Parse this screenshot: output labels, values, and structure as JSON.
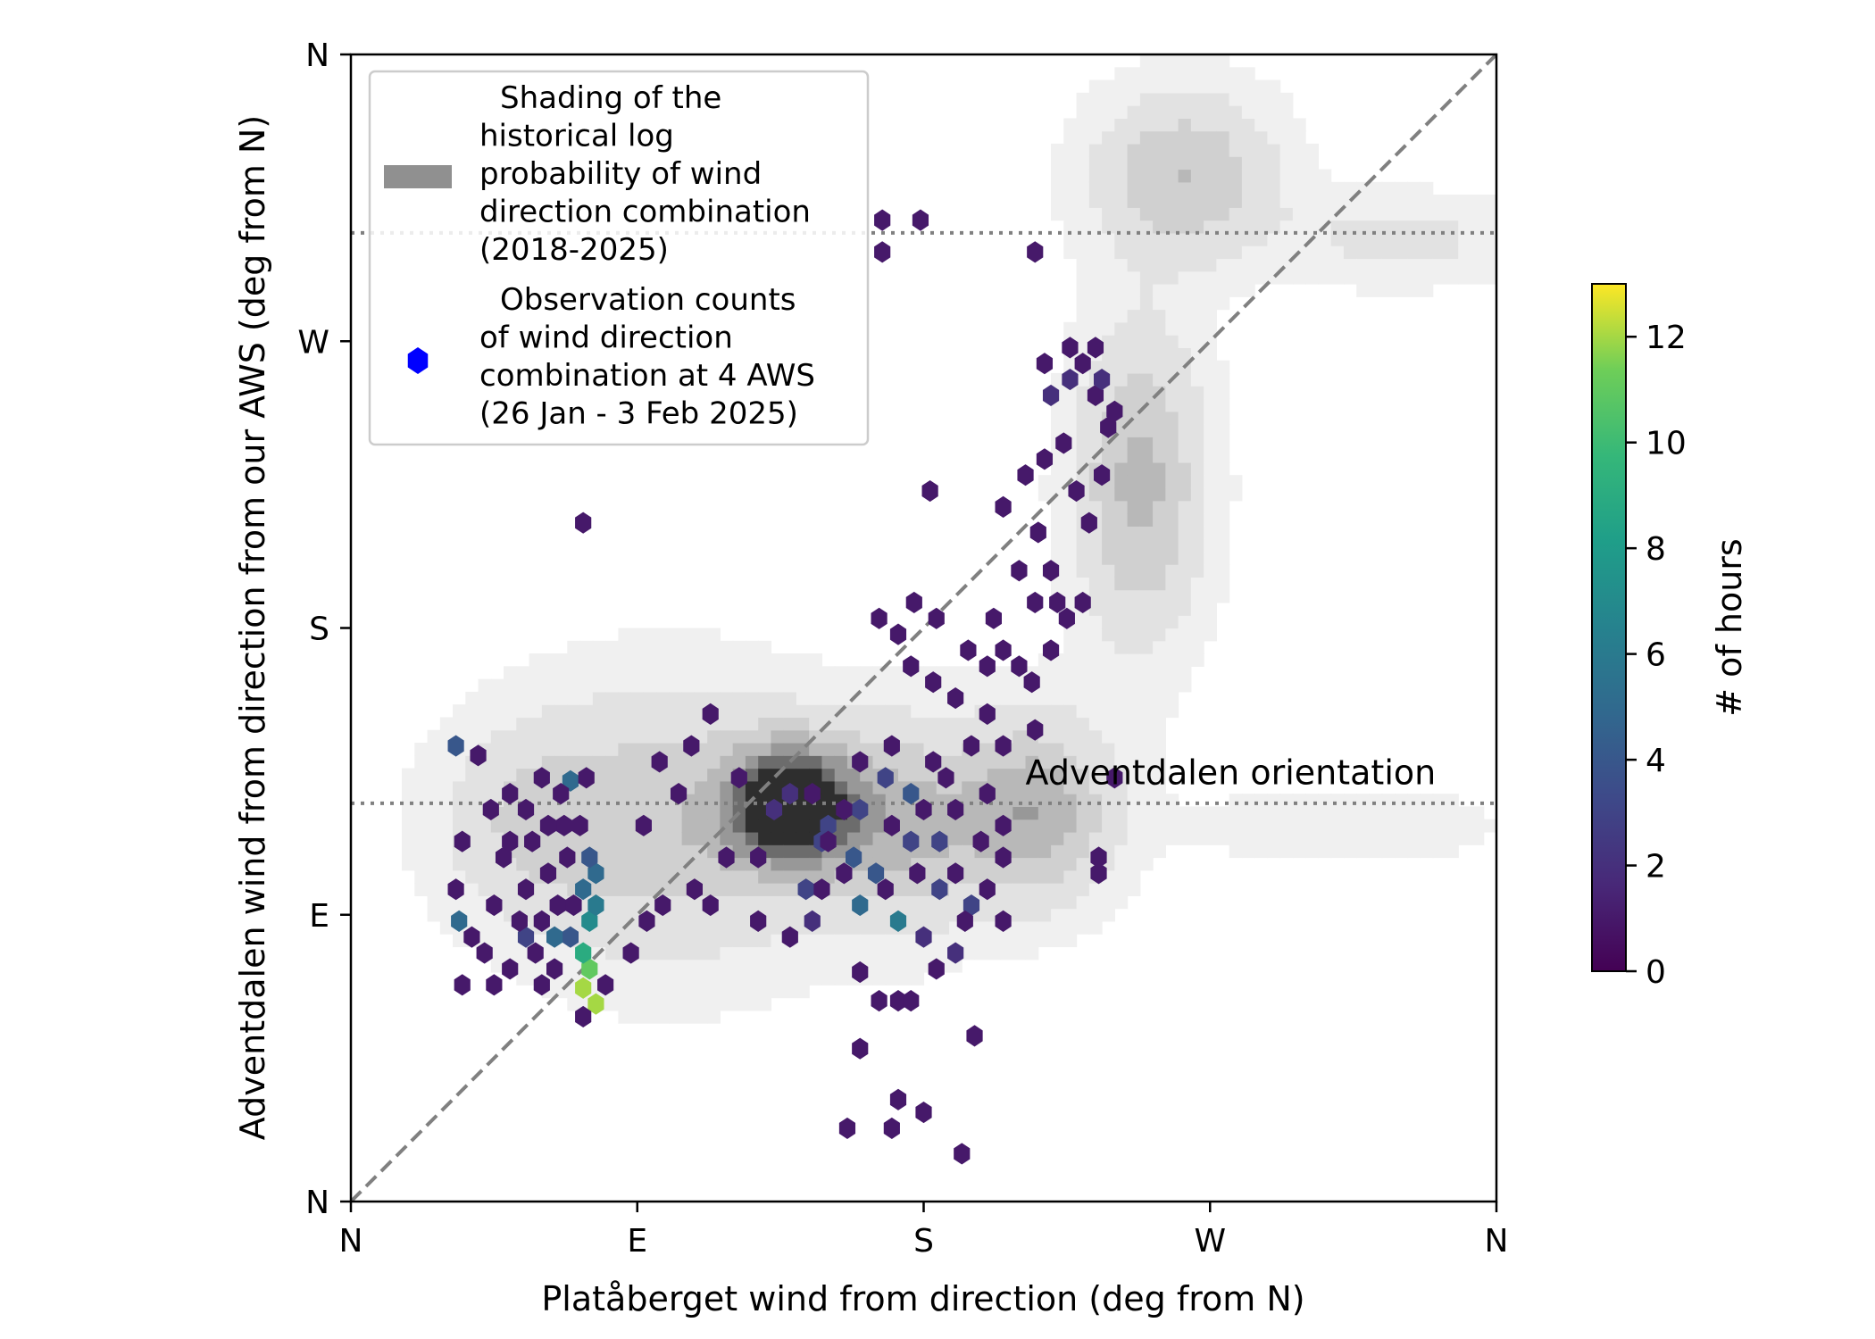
{
  "chart_data": {
    "type": "hexbin-over-contour",
    "xlabel": "Platåberget wind from direction (deg from N)",
    "ylabel": "Adventdalen wind from direction from our AWS (deg from N)",
    "xlim": [
      0,
      360
    ],
    "ylim": [
      0,
      360
    ],
    "x_ticks": [
      {
        "value": 0,
        "label": "N"
      },
      {
        "value": 90,
        "label": "E"
      },
      {
        "value": 180,
        "label": "S"
      },
      {
        "value": 270,
        "label": "W"
      },
      {
        "value": 360,
        "label": "N"
      }
    ],
    "y_ticks": [
      {
        "value": 0,
        "label": "N"
      },
      {
        "value": 90,
        "label": "E"
      },
      {
        "value": 180,
        "label": "S"
      },
      {
        "value": 270,
        "label": "W"
      },
      {
        "value": 360,
        "label": "N"
      }
    ],
    "reference_lines": [
      {
        "type": "diagonal",
        "from": [
          0,
          0
        ],
        "to": [
          360,
          360
        ],
        "style": "dashed",
        "color": "#808080"
      },
      {
        "type": "horizontal",
        "y": 125,
        "style": "dotted",
        "color": "#808080"
      },
      {
        "type": "horizontal",
        "y": 304,
        "style": "dotted",
        "color": "#808080"
      }
    ],
    "annotations": [
      {
        "text": "Adventdalen orientation",
        "x": 212,
        "y": 131
      }
    ],
    "legend": {
      "placement": "top-left",
      "entries": [
        {
          "label_lines": [
            "Shading of the",
            "historical log",
            "probability of wind",
            "direction combination",
            "(2018-2025)"
          ],
          "color": "#909090"
        },
        {
          "label_lines": [
            "Observation counts",
            "of wind direction",
            "combination at 4 AWS",
            "(26 Jan - 3 Feb 2025)"
          ],
          "color": "#0000ff"
        }
      ]
    },
    "colorbar": {
      "label": "# of hours",
      "min": 0,
      "max": 13,
      "ticks": [
        0,
        2,
        4,
        6,
        8,
        10,
        12
      ],
      "colormap": "viridis"
    },
    "contour_levels": [
      0.05,
      0.15,
      0.3,
      0.45,
      0.6,
      0.75,
      0.9
    ],
    "density_components": [
      {
        "x": 138,
        "y": 125,
        "sx": 14,
        "sy": 13,
        "w": 1.0
      },
      {
        "x": 100,
        "y": 118,
        "sx": 35,
        "sy": 30,
        "w": 0.4
      },
      {
        "x": 172,
        "y": 118,
        "sx": 20,
        "sy": 22,
        "w": 0.45
      },
      {
        "x": 215,
        "y": 123,
        "sx": 17,
        "sy": 20,
        "w": 0.55
      },
      {
        "x": 248,
        "y": 225,
        "sx": 14,
        "sy": 34,
        "w": 0.5
      },
      {
        "x": 262,
        "y": 322,
        "sx": 20,
        "sy": 18,
        "w": 0.45
      },
      {
        "x": 330,
        "y": 302,
        "sx": 25,
        "sy": 10,
        "w": 0.2
      },
      {
        "x": 312,
        "y": 118,
        "sx": 40,
        "sy": 10,
        "w": 0.1
      },
      {
        "x": 55,
        "y": 120,
        "sx": 20,
        "sy": 20,
        "w": 0.2
      }
    ],
    "hex_points": [
      {
        "x": 73,
        "y": 67,
        "count": 12
      },
      {
        "x": 77,
        "y": 62,
        "count": 12
      },
      {
        "x": 75,
        "y": 73,
        "count": 11
      },
      {
        "x": 73,
        "y": 78,
        "count": 9
      },
      {
        "x": 75,
        "y": 88,
        "count": 7
      },
      {
        "x": 77,
        "y": 93,
        "count": 6
      },
      {
        "x": 73,
        "y": 98,
        "count": 5
      },
      {
        "x": 77,
        "y": 103,
        "count": 5
      },
      {
        "x": 75,
        "y": 108,
        "count": 4
      },
      {
        "x": 69,
        "y": 83,
        "count": 4
      },
      {
        "x": 64,
        "y": 83,
        "count": 5
      },
      {
        "x": 55,
        "y": 83,
        "count": 3
      },
      {
        "x": 34,
        "y": 88,
        "count": 5
      },
      {
        "x": 33,
        "y": 143,
        "count": 4
      },
      {
        "x": 69,
        "y": 132,
        "count": 5
      },
      {
        "x": 160,
        "y": 93,
        "count": 5
      },
      {
        "x": 165,
        "y": 103,
        "count": 4
      },
      {
        "x": 172,
        "y": 88,
        "count": 6
      },
      {
        "x": 158,
        "y": 108,
        "count": 4
      },
      {
        "x": 176,
        "y": 113,
        "count": 3
      },
      {
        "x": 150,
        "y": 118,
        "count": 3
      },
      {
        "x": 176,
        "y": 128,
        "count": 4
      },
      {
        "x": 168,
        "y": 133,
        "count": 3
      },
      {
        "x": 143,
        "y": 98,
        "count": 3
      },
      {
        "x": 148,
        "y": 113,
        "count": 3
      },
      {
        "x": 185,
        "y": 98,
        "count": 3
      },
      {
        "x": 195,
        "y": 93,
        "count": 3
      },
      {
        "x": 160,
        "y": 123,
        "count": 3
      },
      {
        "x": 185,
        "y": 113,
        "count": 3
      },
      {
        "x": 145,
        "y": 88,
        "count": 2
      },
      {
        "x": 180,
        "y": 83,
        "count": 2
      },
      {
        "x": 190,
        "y": 78,
        "count": 2
      },
      {
        "x": 133,
        "y": 123,
        "count": 2
      },
      {
        "x": 138,
        "y": 128,
        "count": 2
      },
      {
        "x": 128,
        "y": 108,
        "count": 1
      },
      {
        "x": 113,
        "y": 93,
        "count": 1
      },
      {
        "x": 108,
        "y": 98,
        "count": 1
      },
      {
        "x": 118,
        "y": 108,
        "count": 1
      },
      {
        "x": 103,
        "y": 128,
        "count": 1
      },
      {
        "x": 97,
        "y": 138,
        "count": 1
      },
      {
        "x": 92,
        "y": 118,
        "count": 1
      },
      {
        "x": 88,
        "y": 78,
        "count": 1
      },
      {
        "x": 80,
        "y": 68,
        "count": 1
      },
      {
        "x": 60,
        "y": 68,
        "count": 1
      },
      {
        "x": 45,
        "y": 68,
        "count": 1
      },
      {
        "x": 35,
        "y": 68,
        "count": 1
      },
      {
        "x": 33,
        "y": 98,
        "count": 1
      },
      {
        "x": 35,
        "y": 113,
        "count": 1
      },
      {
        "x": 40,
        "y": 140,
        "count": 1
      },
      {
        "x": 50,
        "y": 128,
        "count": 1
      },
      {
        "x": 57,
        "y": 113,
        "count": 1
      },
      {
        "x": 62,
        "y": 103,
        "count": 1
      },
      {
        "x": 67,
        "y": 118,
        "count": 1
      },
      {
        "x": 45,
        "y": 93,
        "count": 1
      },
      {
        "x": 55,
        "y": 98,
        "count": 1
      },
      {
        "x": 48,
        "y": 108,
        "count": 1
      },
      {
        "x": 72,
        "y": 118,
        "count": 1
      },
      {
        "x": 74,
        "y": 133,
        "count": 1
      },
      {
        "x": 73,
        "y": 58,
        "count": 1
      },
      {
        "x": 93,
        "y": 88,
        "count": 1
      },
      {
        "x": 98,
        "y": 93,
        "count": 1
      },
      {
        "x": 107,
        "y": 143,
        "count": 1
      },
      {
        "x": 113,
        "y": 153,
        "count": 1
      },
      {
        "x": 122,
        "y": 133,
        "count": 1
      },
      {
        "x": 128,
        "y": 88,
        "count": 1
      },
      {
        "x": 138,
        "y": 83,
        "count": 1
      },
      {
        "x": 148,
        "y": 98,
        "count": 1
      },
      {
        "x": 160,
        "y": 72,
        "count": 1
      },
      {
        "x": 166,
        "y": 63,
        "count": 1
      },
      {
        "x": 172,
        "y": 63,
        "count": 1
      },
      {
        "x": 176,
        "y": 63,
        "count": 1
      },
      {
        "x": 184,
        "y": 73,
        "count": 1
      },
      {
        "x": 160,
        "y": 48,
        "count": 1
      },
      {
        "x": 172,
        "y": 32,
        "count": 1
      },
      {
        "x": 180,
        "y": 28,
        "count": 1
      },
      {
        "x": 192,
        "y": 15,
        "count": 1
      },
      {
        "x": 196,
        "y": 52,
        "count": 1
      },
      {
        "x": 195,
        "y": 143,
        "count": 1
      },
      {
        "x": 200,
        "y": 153,
        "count": 1
      },
      {
        "x": 205,
        "y": 143,
        "count": 1
      },
      {
        "x": 190,
        "y": 158,
        "count": 1
      },
      {
        "x": 183,
        "y": 163,
        "count": 1
      },
      {
        "x": 176,
        "y": 168,
        "count": 1
      },
      {
        "x": 172,
        "y": 178,
        "count": 1
      },
      {
        "x": 184,
        "y": 183,
        "count": 1
      },
      {
        "x": 194,
        "y": 173,
        "count": 1
      },
      {
        "x": 205,
        "y": 173,
        "count": 1
      },
      {
        "x": 200,
        "y": 168,
        "count": 1
      },
      {
        "x": 210,
        "y": 168,
        "count": 1
      },
      {
        "x": 215,
        "y": 148,
        "count": 1
      },
      {
        "x": 220,
        "y": 173,
        "count": 1
      },
      {
        "x": 225,
        "y": 183,
        "count": 1
      },
      {
        "x": 215,
        "y": 188,
        "count": 1
      },
      {
        "x": 210,
        "y": 198,
        "count": 1
      },
      {
        "x": 220,
        "y": 198,
        "count": 1
      },
      {
        "x": 230,
        "y": 188,
        "count": 1
      },
      {
        "x": 240,
        "y": 133,
        "count": 1
      },
      {
        "x": 235,
        "y": 103,
        "count": 1
      },
      {
        "x": 235,
        "y": 108,
        "count": 1
      },
      {
        "x": 205,
        "y": 218,
        "count": 1
      },
      {
        "x": 212,
        "y": 228,
        "count": 1
      },
      {
        "x": 218,
        "y": 233,
        "count": 1
      },
      {
        "x": 224,
        "y": 238,
        "count": 1
      },
      {
        "x": 228,
        "y": 223,
        "count": 1
      },
      {
        "x": 232,
        "y": 213,
        "count": 1
      },
      {
        "x": 236,
        "y": 228,
        "count": 1
      },
      {
        "x": 238,
        "y": 243,
        "count": 1
      },
      {
        "x": 220,
        "y": 253,
        "count": 2
      },
      {
        "x": 226,
        "y": 258,
        "count": 2
      },
      {
        "x": 230,
        "y": 263,
        "count": 1
      },
      {
        "x": 234,
        "y": 253,
        "count": 1
      },
      {
        "x": 236,
        "y": 258,
        "count": 2
      },
      {
        "x": 226,
        "y": 268,
        "count": 1
      },
      {
        "x": 234,
        "y": 268,
        "count": 1
      },
      {
        "x": 240,
        "y": 248,
        "count": 1
      },
      {
        "x": 218,
        "y": 263,
        "count": 1
      },
      {
        "x": 182,
        "y": 223,
        "count": 1
      },
      {
        "x": 73,
        "y": 213,
        "count": 1
      },
      {
        "x": 167,
        "y": 308,
        "count": 1
      },
      {
        "x": 167,
        "y": 298,
        "count": 1
      },
      {
        "x": 179,
        "y": 308,
        "count": 1
      },
      {
        "x": 215,
        "y": 298,
        "count": 1
      },
      {
        "x": 156,
        "y": 23,
        "count": 1
      },
      {
        "x": 170,
        "y": 23,
        "count": 1
      },
      {
        "x": 166,
        "y": 183,
        "count": 1
      },
      {
        "x": 177,
        "y": 188,
        "count": 1
      },
      {
        "x": 202,
        "y": 183,
        "count": 1
      },
      {
        "x": 214,
        "y": 163,
        "count": 1
      },
      {
        "x": 216,
        "y": 210,
        "count": 1
      },
      {
        "x": 222,
        "y": 188,
        "count": 1
      },
      {
        "x": 150,
        "y": 113,
        "count": 1
      },
      {
        "x": 155,
        "y": 123,
        "count": 1
      },
      {
        "x": 145,
        "y": 128,
        "count": 1
      },
      {
        "x": 170,
        "y": 118,
        "count": 1
      },
      {
        "x": 190,
        "y": 123,
        "count": 1
      },
      {
        "x": 200,
        "y": 128,
        "count": 1
      },
      {
        "x": 205,
        "y": 118,
        "count": 1
      },
      {
        "x": 205,
        "y": 108,
        "count": 1
      },
      {
        "x": 200,
        "y": 98,
        "count": 1
      },
      {
        "x": 205,
        "y": 88,
        "count": 1
      },
      {
        "x": 187,
        "y": 133,
        "count": 1
      },
      {
        "x": 180,
        "y": 123,
        "count": 1
      },
      {
        "x": 183,
        "y": 138,
        "count": 1
      },
      {
        "x": 170,
        "y": 143,
        "count": 1
      },
      {
        "x": 160,
        "y": 138,
        "count": 1
      },
      {
        "x": 155,
        "y": 103,
        "count": 1
      },
      {
        "x": 168,
        "y": 98,
        "count": 1
      },
      {
        "x": 178,
        "y": 103,
        "count": 1
      },
      {
        "x": 190,
        "y": 103,
        "count": 1
      },
      {
        "x": 193,
        "y": 88,
        "count": 1
      },
      {
        "x": 198,
        "y": 113,
        "count": 1
      },
      {
        "x": 60,
        "y": 133,
        "count": 1
      },
      {
        "x": 55,
        "y": 123,
        "count": 1
      },
      {
        "x": 62,
        "y": 118,
        "count": 1
      },
      {
        "x": 68,
        "y": 108,
        "count": 1
      },
      {
        "x": 65,
        "y": 93,
        "count": 1
      },
      {
        "x": 60,
        "y": 88,
        "count": 1
      },
      {
        "x": 58,
        "y": 78,
        "count": 1
      },
      {
        "x": 50,
        "y": 73,
        "count": 1
      },
      {
        "x": 42,
        "y": 78,
        "count": 1
      },
      {
        "x": 38,
        "y": 83,
        "count": 1
      },
      {
        "x": 64,
        "y": 73,
        "count": 1
      },
      {
        "x": 70,
        "y": 93,
        "count": 1
      },
      {
        "x": 50,
        "y": 113,
        "count": 1
      },
      {
        "x": 44,
        "y": 123,
        "count": 1
      },
      {
        "x": 66,
        "y": 128,
        "count": 1
      },
      {
        "x": 53,
        "y": 88,
        "count": 1
      }
    ]
  }
}
